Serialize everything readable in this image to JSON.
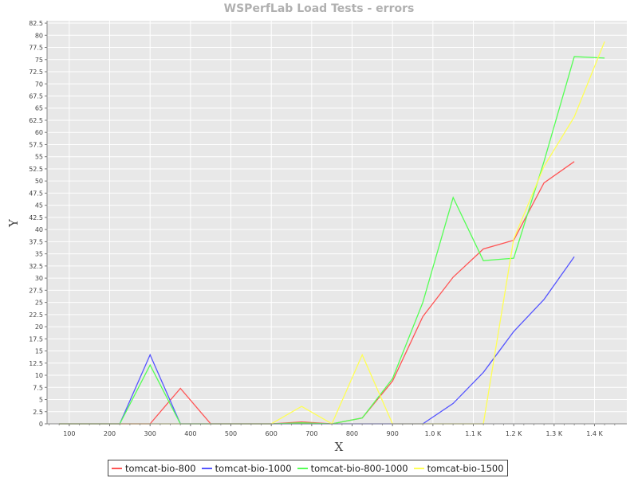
{
  "chart_data": {
    "type": "line",
    "title": "WSPerfLab Load Tests - errors",
    "xlabel": "X",
    "ylabel": "Y",
    "xlim": [
      45,
      1480
    ],
    "ylim": [
      0,
      83
    ],
    "grid": true,
    "legend_position": "bottom",
    "x_ticks": [
      {
        "value": 100,
        "label": "100"
      },
      {
        "value": 200,
        "label": "200"
      },
      {
        "value": 300,
        "label": "300"
      },
      {
        "value": 400,
        "label": "400"
      },
      {
        "value": 500,
        "label": "500"
      },
      {
        "value": 600,
        "label": "600"
      },
      {
        "value": 700,
        "label": "700"
      },
      {
        "value": 800,
        "label": "800"
      },
      {
        "value": 900,
        "label": "900"
      },
      {
        "value": 1000,
        "label": "1.0 K"
      },
      {
        "value": 1100,
        "label": "1.1 K"
      },
      {
        "value": 1200,
        "label": "1.2 K"
      },
      {
        "value": 1300,
        "label": "1.3 K"
      },
      {
        "value": 1400,
        "label": "1.4 K"
      }
    ],
    "y_ticks": [
      "0",
      "2.5",
      "5",
      "7.5",
      "10",
      "12.5",
      "15",
      "17.5",
      "20",
      "22.5",
      "25",
      "27.5",
      "30",
      "32.5",
      "35",
      "37.5",
      "40",
      "42.5",
      "45",
      "47.5",
      "50",
      "52.5",
      "55",
      "57.5",
      "60",
      "62.5",
      "65",
      "67.5",
      "70",
      "72.5",
      "75",
      "77.5",
      "80",
      "82.5"
    ],
    "series": [
      {
        "name": "tomcat-bio-800",
        "color": "#ff5555",
        "x": [
          75,
          150,
          225,
          300,
          375,
          450,
          525,
          600,
          675,
          750,
          825,
          900,
          975,
          1050,
          1125,
          1200,
          1275,
          1350
        ],
        "y": [
          0,
          0,
          0,
          0,
          7.3,
          0,
          0,
          0,
          0.4,
          0,
          1.2,
          8.8,
          22.1,
          30.2,
          36,
          37.8,
          49.6,
          54
        ]
      },
      {
        "name": "tomcat-bio-1000",
        "color": "#5555ff",
        "x": [
          75,
          150,
          225,
          300,
          375,
          450,
          525,
          600,
          675,
          750,
          825,
          900,
          975,
          1050,
          1125,
          1200,
          1275,
          1350
        ],
        "y": [
          0,
          0,
          0,
          14.2,
          0,
          0,
          0,
          0,
          0,
          0,
          0,
          0,
          0,
          4.2,
          10.6,
          19,
          25.6,
          34.4
        ]
      },
      {
        "name": "tomcat-bio-800-1000",
        "color": "#55ff55",
        "x": [
          75,
          150,
          225,
          300,
          375,
          450,
          525,
          600,
          675,
          750,
          825,
          900,
          975,
          1050,
          1125,
          1200,
          1275,
          1350,
          1425
        ],
        "y": [
          0,
          0,
          0,
          12.1,
          0,
          0,
          0,
          0,
          0.2,
          0,
          1.2,
          9.3,
          25,
          46.6,
          33.6,
          34.1,
          54,
          75.6,
          75.3
        ]
      },
      {
        "name": "tomcat-bio-1500",
        "color": "#ffff55",
        "x": [
          75,
          150,
          225,
          300,
          375,
          450,
          525,
          600,
          675,
          750,
          825,
          900,
          975,
          1050,
          1125,
          1200,
          1275,
          1350,
          1425
        ],
        "y": [
          0,
          0,
          0,
          0,
          0,
          0,
          0,
          0,
          3.6,
          0,
          14.2,
          0,
          0,
          0,
          0,
          38,
          53,
          63.2,
          78.7
        ]
      }
    ]
  }
}
